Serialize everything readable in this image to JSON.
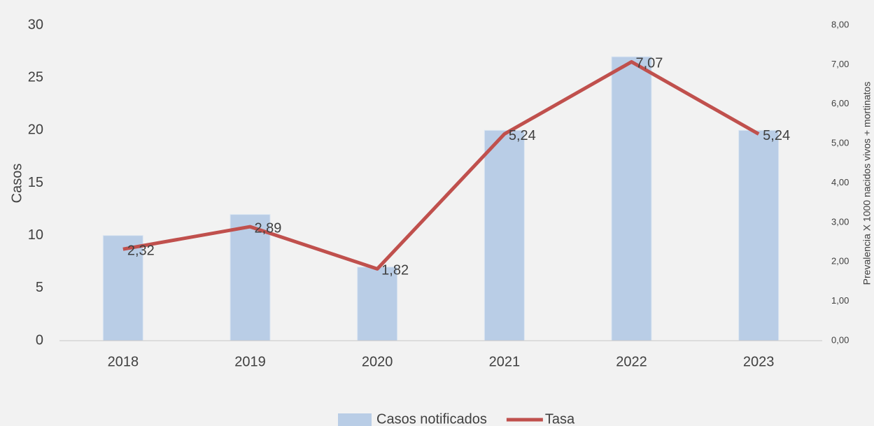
{
  "chart_data": {
    "type": "bar-line",
    "categories": [
      "2018",
      "2019",
      "2020",
      "2021",
      "2022",
      "2023"
    ],
    "series": [
      {
        "name": "Casos notificados",
        "type": "bar",
        "color": "#b9cde6",
        "values": [
          10,
          12,
          7,
          20,
          27,
          20
        ]
      },
      {
        "name": "Tasa",
        "type": "line",
        "axis": "y2",
        "color": "#c0504d",
        "values": [
          2.32,
          2.89,
          1.82,
          5.24,
          7.07,
          5.24
        ],
        "value_labels": [
          "2,32",
          "2,89",
          "1,82",
          "5,24",
          "7,07",
          "5,24"
        ]
      }
    ],
    "ylabel": "Casos",
    "y2label": "Prevalencia X 1000 nacidos vivos + mortinatos",
    "ylim": [
      0,
      30
    ],
    "yticks": [
      0,
      5,
      10,
      15,
      20,
      25,
      30
    ],
    "y2lim": [
      0,
      8
    ],
    "y2ticks": [
      {
        "value": 0,
        "label": "0,00"
      },
      {
        "value": 1,
        "label": "1,00"
      },
      {
        "value": 2,
        "label": "2,00"
      },
      {
        "value": 3,
        "label": "3,00"
      },
      {
        "value": 4,
        "label": "4,00"
      },
      {
        "value": 5,
        "label": "5,00"
      },
      {
        "value": 6,
        "label": "6,00"
      },
      {
        "value": 7,
        "label": "7,00"
      },
      {
        "value": 8,
        "label": "8,00"
      }
    ],
    "legend": "bottom"
  }
}
